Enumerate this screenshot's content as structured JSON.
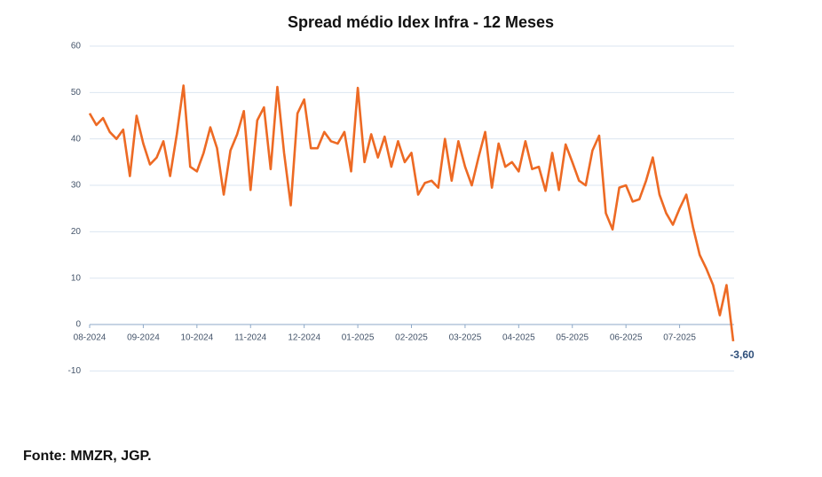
{
  "chart_data": {
    "type": "line",
    "title": "Spread médio Idex Infra - 12 Meses",
    "categories": [
      "08-2024",
      null,
      null,
      null,
      null,
      null,
      null,
      null,
      "09-2024",
      null,
      null,
      null,
      null,
      null,
      null,
      null,
      "10-2024",
      null,
      null,
      null,
      null,
      null,
      null,
      null,
      "11-2024",
      null,
      null,
      null,
      null,
      null,
      null,
      null,
      "12-2024",
      null,
      null,
      null,
      null,
      null,
      null,
      null,
      "01-2025",
      null,
      null,
      null,
      null,
      null,
      null,
      null,
      "02-2025",
      null,
      null,
      null,
      null,
      null,
      null,
      null,
      "03-2025",
      null,
      null,
      null,
      null,
      null,
      null,
      null,
      "04-2025",
      null,
      null,
      null,
      null,
      null,
      null,
      null,
      "05-2025",
      null,
      null,
      null,
      null,
      null,
      null,
      null,
      "06-2025",
      null,
      null,
      null,
      null,
      null,
      null,
      null,
      "07-2025",
      null,
      null,
      null,
      null,
      null,
      null,
      null,
      null
    ],
    "series": [
      {
        "name": "Spread médio Idex Infra",
        "color": "#ed6a24",
        "values": [
          45.5,
          43,
          44.5,
          41.5,
          40,
          42,
          32,
          45,
          39,
          34.5,
          36,
          39.5,
          32,
          41,
          51.5,
          34,
          33,
          37,
          42.5,
          38,
          28,
          37.5,
          41,
          46,
          29,
          44,
          46.8,
          33.5,
          51.2,
          37,
          25.7,
          45.5,
          48.5,
          38,
          38,
          41.5,
          39.5,
          39,
          41.5,
          33,
          51,
          35,
          41,
          36,
          40.5,
          34,
          39.5,
          35,
          37,
          28,
          30.5,
          31,
          29.5,
          40,
          31,
          39.5,
          34,
          30,
          36,
          41.5,
          29.5,
          39,
          34,
          35,
          33,
          39.5,
          33.5,
          34,
          28.8,
          37,
          29,
          38.8,
          35,
          31,
          30,
          37.5,
          40.7,
          24,
          20.5,
          29.5,
          30,
          26.5,
          27,
          31,
          36,
          28,
          24,
          21.5,
          25,
          28,
          21,
          15,
          12,
          8.5,
          2,
          8.5,
          -3.6
        ],
        "value_labels": [
          null,
          null,
          null,
          null,
          null,
          null,
          null,
          null,
          null,
          null,
          null,
          null,
          null,
          null,
          null,
          null,
          null,
          null,
          null,
          null,
          null,
          null,
          null,
          null,
          null,
          null,
          null,
          null,
          null,
          null,
          null,
          null,
          null,
          null,
          null,
          null,
          null,
          null,
          null,
          null,
          null,
          null,
          null,
          null,
          null,
          null,
          null,
          null,
          null,
          null,
          null,
          null,
          null,
          null,
          null,
          null,
          null,
          null,
          null,
          null,
          null,
          null,
          null,
          null,
          null,
          null,
          null,
          null,
          null,
          null,
          null,
          null,
          null,
          null,
          null,
          null,
          null,
          null,
          null,
          null,
          null,
          null,
          null,
          null,
          null,
          null,
          null,
          null,
          null,
          null,
          null,
          null,
          null,
          null,
          null,
          null,
          "-3,60"
        ]
      }
    ],
    "ylim": [
      -10,
      60
    ],
    "yticks": [
      -10,
      0,
      10,
      20,
      30,
      40,
      50,
      60
    ],
    "grid": true
  },
  "source": "Fonte: MMZR, JGP."
}
